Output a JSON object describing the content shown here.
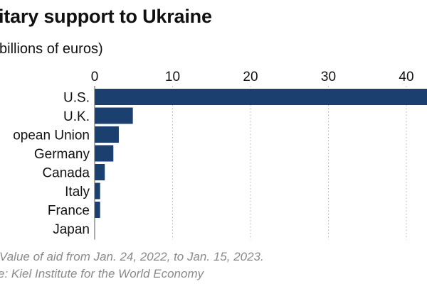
{
  "header": {
    "title": "itary support to Ukraine",
    "subtitle": "billions of euros)"
  },
  "footer": {
    "note": "Value of aid from Jan. 24, 2022, to Jan. 15, 2023.",
    "source": "e: Kiel Institute for the World Economy"
  },
  "colors": {
    "bar": "#1b3f6e",
    "grid": "#b5b5b5",
    "axis_text": "#111111"
  },
  "chart_data": {
    "type": "bar",
    "orientation": "horizontal",
    "title": "itary support to Ukraine",
    "subtitle": "billions of euros)",
    "categories": [
      "U.S.",
      "U.K.",
      "opean Union",
      "Germany",
      "Canada",
      "Italy",
      "France",
      "Japan"
    ],
    "values": [
      47.0,
      4.9,
      3.1,
      2.4,
      1.3,
      0.7,
      0.7,
      0.0
    ],
    "xticks": [
      0,
      10,
      20,
      30,
      40
    ],
    "tick_labels": [
      "0",
      "10",
      "20",
      "30",
      "40"
    ],
    "xlim": [
      0,
      42.5
    ],
    "grid": "vertical dotted",
    "legend": "none"
  }
}
